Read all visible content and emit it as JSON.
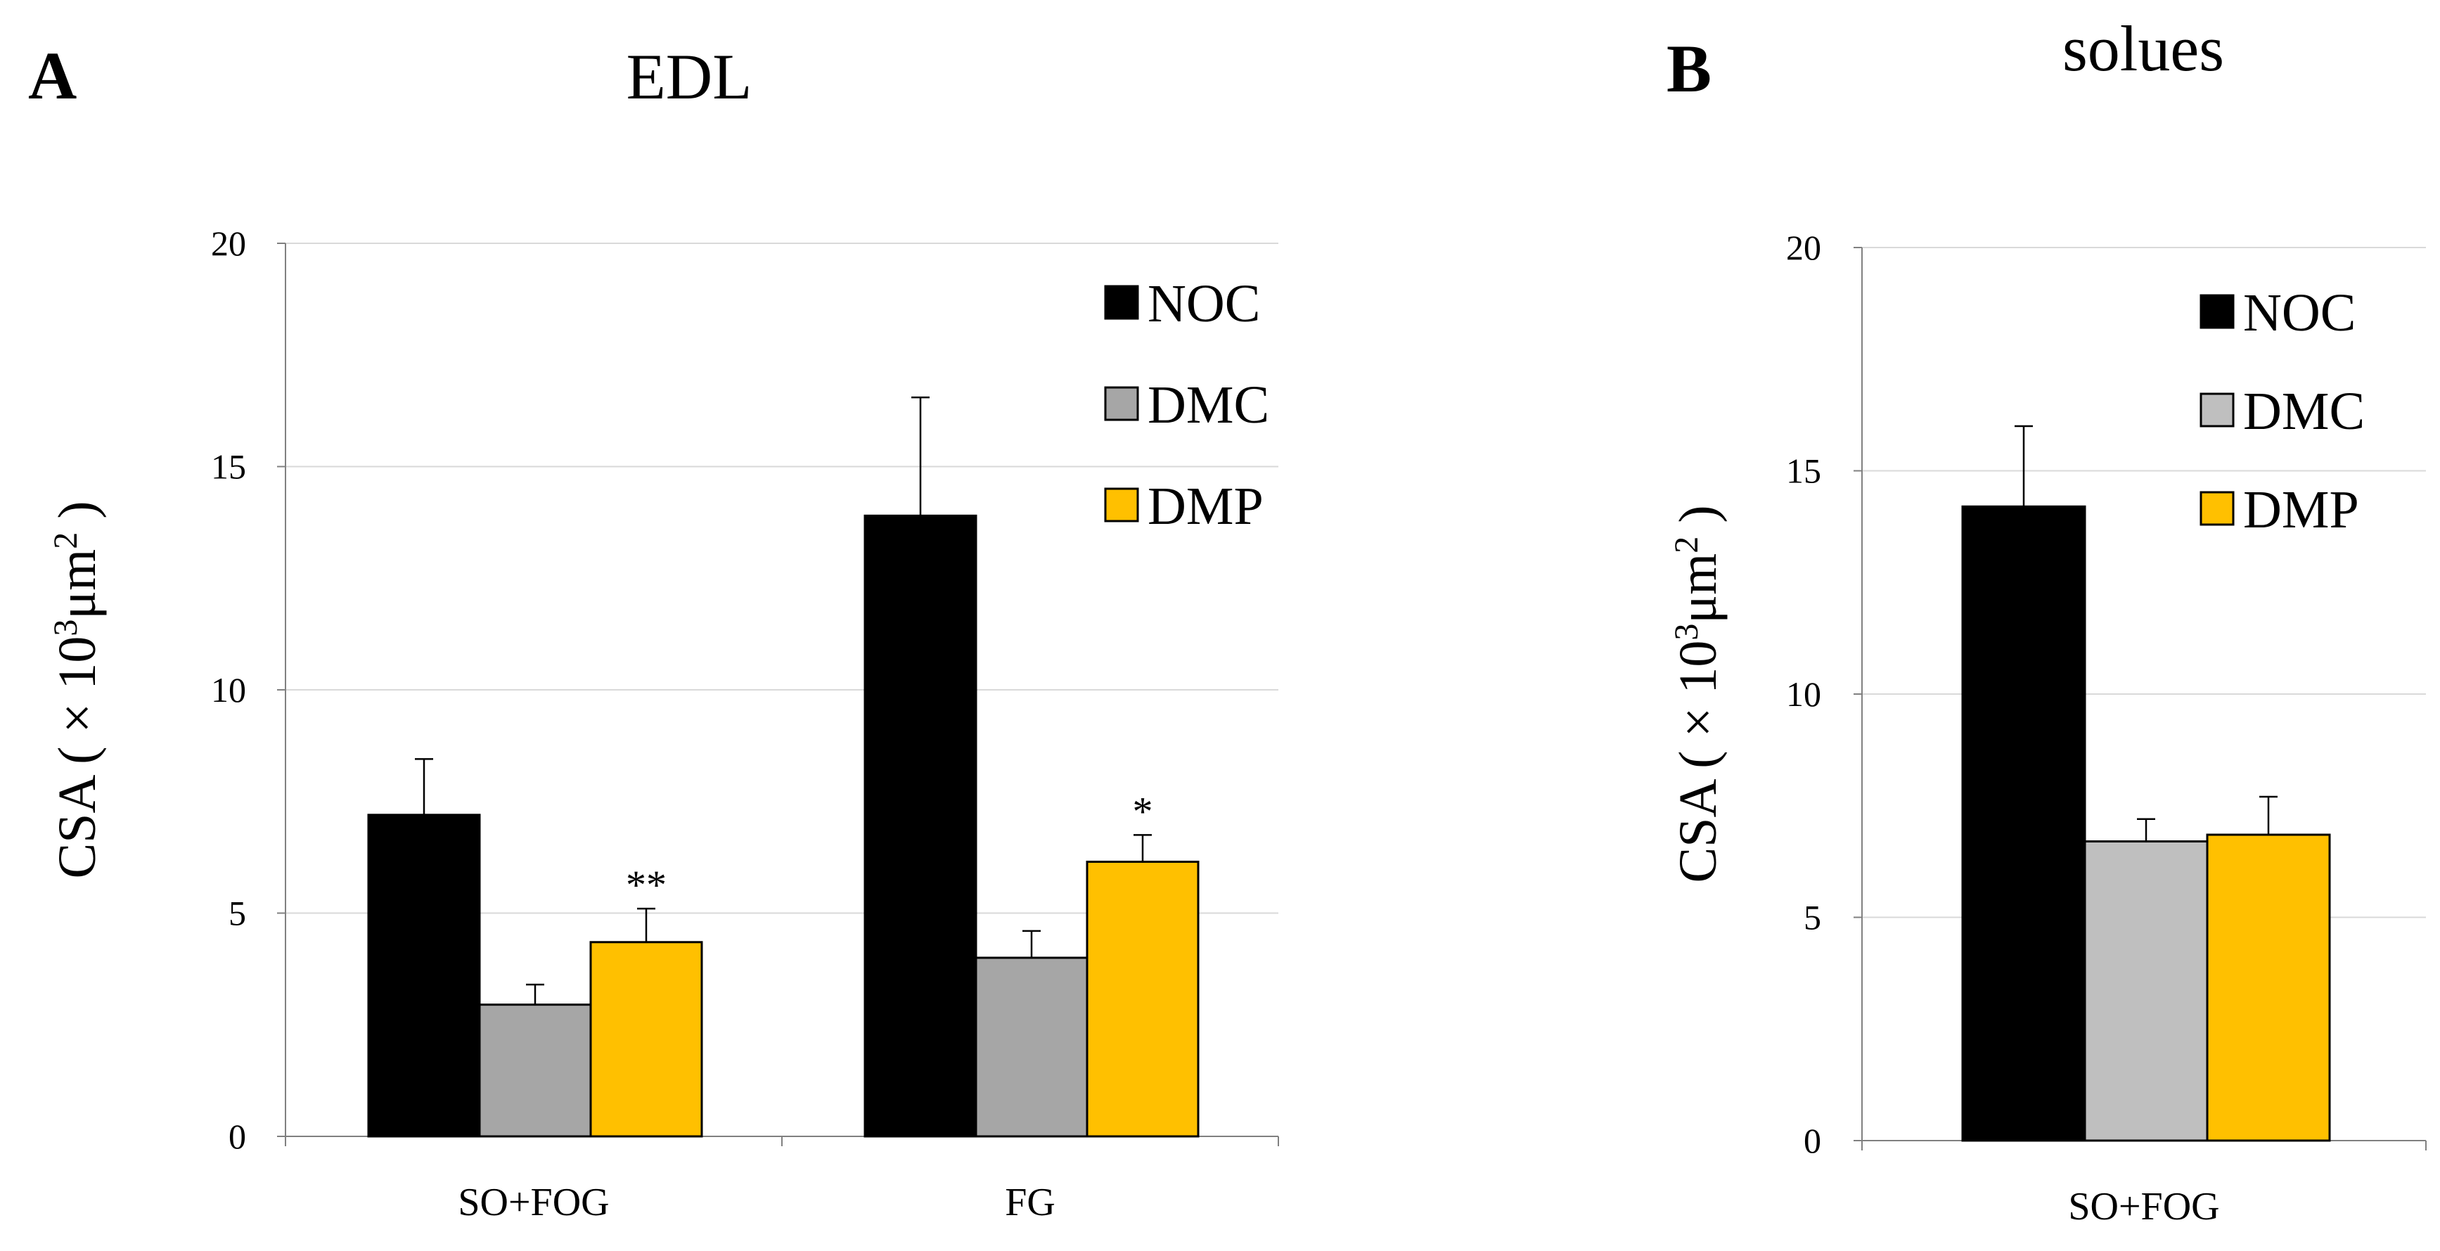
{
  "chart_data": [
    {
      "panel": "A",
      "type": "bar",
      "title": "EDL",
      "xlabel": "",
      "ylabel": "CSA ( × 10³μm² )",
      "ylabel_parts": {
        "pre": "CSA ( ",
        "times": "×",
        "ten": " 10",
        "exp1": "3",
        "unit": "μm",
        "exp2": "2",
        "post": " )"
      },
      "ylim": [
        0,
        20
      ],
      "yticks": [
        0,
        5,
        10,
        15,
        20
      ],
      "grid": true,
      "legend": "top-right",
      "categories": [
        "SO+FOG",
        "FG"
      ],
      "series": [
        {
          "name": "NOC",
          "color": "#000000",
          "values": [
            7.2,
            13.9
          ],
          "errors": [
            1.25,
            2.65
          ],
          "labels": [
            "",
            ""
          ]
        },
        {
          "name": "DMC",
          "color": "#a6a6a6",
          "values": [
            2.95,
            4.0
          ],
          "errors": [
            0.45,
            0.6
          ],
          "labels": [
            "",
            ""
          ]
        },
        {
          "name": "DMP",
          "color": "#ffc000",
          "values": [
            4.35,
            6.15
          ],
          "errors": [
            0.75,
            0.6
          ],
          "labels": [
            "**",
            "*"
          ]
        }
      ]
    },
    {
      "panel": "B",
      "type": "bar",
      "title": "solues",
      "xlabel": "",
      "ylabel": "CSA ( × 10³μm² )",
      "ylabel_parts": {
        "pre": "CSA ( ",
        "times": "×",
        "ten": " 10",
        "exp1": "3",
        "unit": "μm",
        "exp2": "2",
        "post": " )"
      },
      "ylim": [
        0,
        20
      ],
      "yticks": [
        0,
        5,
        10,
        15,
        20
      ],
      "grid": true,
      "legend": "top-right",
      "categories": [
        "SO+FOG"
      ],
      "series": [
        {
          "name": "NOC",
          "color": "#000000",
          "values": [
            14.2
          ],
          "errors": [
            1.8
          ],
          "labels": [
            ""
          ]
        },
        {
          "name": "DMC",
          "color": "#bfbfbf",
          "values": [
            6.7
          ],
          "errors": [
            0.5
          ],
          "labels": [
            ""
          ]
        },
        {
          "name": "DMP",
          "color": "#ffc000",
          "values": [
            6.85
          ],
          "errors": [
            0.85
          ],
          "labels": [
            ""
          ]
        }
      ]
    }
  ]
}
